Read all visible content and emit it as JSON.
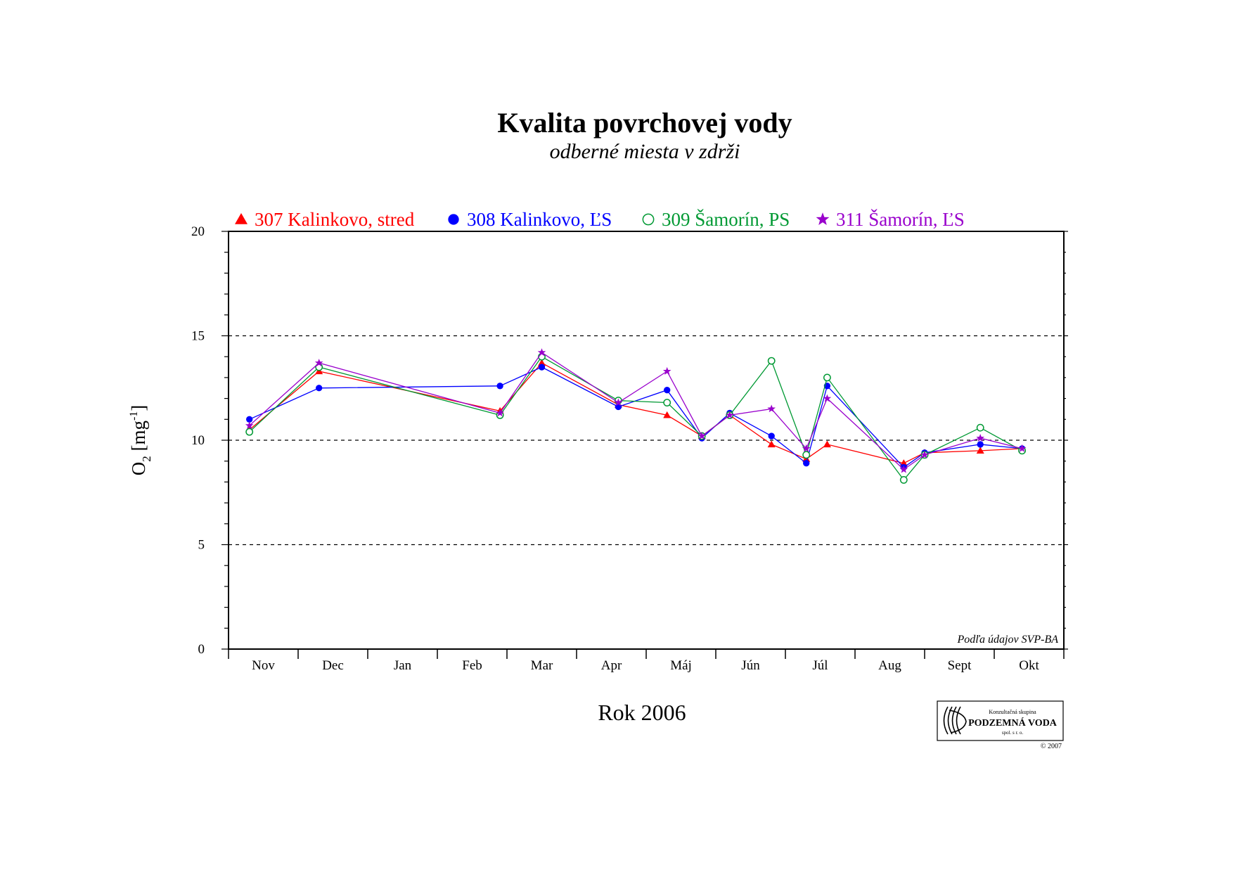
{
  "chart_data": {
    "type": "line",
    "title": "Kvalita povrchovej vody",
    "subtitle": "odberné miesta v zdrži",
    "xlabel": "Rok 2006",
    "ylabel_main": "O",
    "ylabel_sub": "2",
    "ylabel_unit": " [mg",
    "ylabel_sup": "-1",
    "ylabel_close": "]",
    "months": [
      "Nov",
      "Dec",
      "Jan",
      "Feb",
      "Mar",
      "Apr",
      "Máj",
      "Jún",
      "Júl",
      "Aug",
      "Sept",
      "Okt"
    ],
    "x_unit": "month index (0 = 1 Nov 2005, 12 = 1 Nov 2006)",
    "xlim": [
      0,
      12
    ],
    "ylim": [
      0,
      20
    ],
    "yticks": [
      0,
      5,
      10,
      15,
      20
    ],
    "dashed_gridlines": [
      5,
      10,
      15
    ],
    "legend_position": "top",
    "source_note": "Podľa údajov SVP-BA",
    "logo": {
      "line1": "Konzultačná skupina",
      "line2": "PODZEMNÁ VODA",
      "line3": "spol. s r. o.",
      "copyright": "© 2007"
    },
    "series": [
      {
        "name": "307 Kalinkovo, stred",
        "color": "#ff0000",
        "marker": "triangle",
        "points": [
          [
            0.3,
            10.5
          ],
          [
            1.3,
            13.3
          ],
          [
            3.9,
            11.4
          ],
          [
            4.5,
            13.7
          ],
          [
            5.6,
            11.7
          ],
          [
            6.3,
            11.2
          ],
          [
            6.8,
            10.2
          ],
          [
            7.2,
            11.2
          ],
          [
            7.8,
            9.8
          ],
          [
            8.3,
            9.1
          ],
          [
            8.6,
            9.8
          ],
          [
            9.7,
            8.9
          ],
          [
            10.0,
            9.4
          ],
          [
            10.8,
            9.5
          ],
          [
            11.4,
            9.6
          ]
        ]
      },
      {
        "name": "308 Kalinkovo, ĽS",
        "color": "#0000ff",
        "marker": "filled-circle",
        "points": [
          [
            0.3,
            11.0
          ],
          [
            1.3,
            12.5
          ],
          [
            3.9,
            12.6
          ],
          [
            4.5,
            13.5
          ],
          [
            5.6,
            11.6
          ],
          [
            6.3,
            12.4
          ],
          [
            6.8,
            10.1
          ],
          [
            7.2,
            11.3
          ],
          [
            7.8,
            10.2
          ],
          [
            8.3,
            8.9
          ],
          [
            8.6,
            12.6
          ],
          [
            9.7,
            8.7
          ],
          [
            10.0,
            9.4
          ],
          [
            10.8,
            9.8
          ],
          [
            11.4,
            9.6
          ]
        ]
      },
      {
        "name": "309 Šamorín, PS",
        "color": "#009933",
        "marker": "open-circle",
        "points": [
          [
            0.3,
            10.4
          ],
          [
            1.3,
            13.5
          ],
          [
            3.9,
            11.2
          ],
          [
            4.5,
            14.0
          ],
          [
            5.6,
            11.9
          ],
          [
            6.3,
            11.8
          ],
          [
            6.8,
            10.2
          ],
          [
            7.2,
            11.2
          ],
          [
            7.8,
            13.8
          ],
          [
            8.3,
            9.3
          ],
          [
            8.6,
            13.0
          ],
          [
            9.7,
            8.1
          ],
          [
            10.0,
            9.3
          ],
          [
            10.8,
            10.6
          ],
          [
            11.4,
            9.5
          ]
        ]
      },
      {
        "name": "311 Šamorín, ĽS",
        "color": "#9900cc",
        "marker": "star",
        "points": [
          [
            0.3,
            10.7
          ],
          [
            1.3,
            13.7
          ],
          [
            3.9,
            11.3
          ],
          [
            4.5,
            14.2
          ],
          [
            5.6,
            11.8
          ],
          [
            6.3,
            13.3
          ],
          [
            6.8,
            10.2
          ],
          [
            7.2,
            11.2
          ],
          [
            7.8,
            11.5
          ],
          [
            8.3,
            9.6
          ],
          [
            8.6,
            12.0
          ],
          [
            9.7,
            8.6
          ],
          [
            10.0,
            9.3
          ],
          [
            10.8,
            10.1
          ],
          [
            11.4,
            9.6
          ]
        ]
      }
    ]
  }
}
